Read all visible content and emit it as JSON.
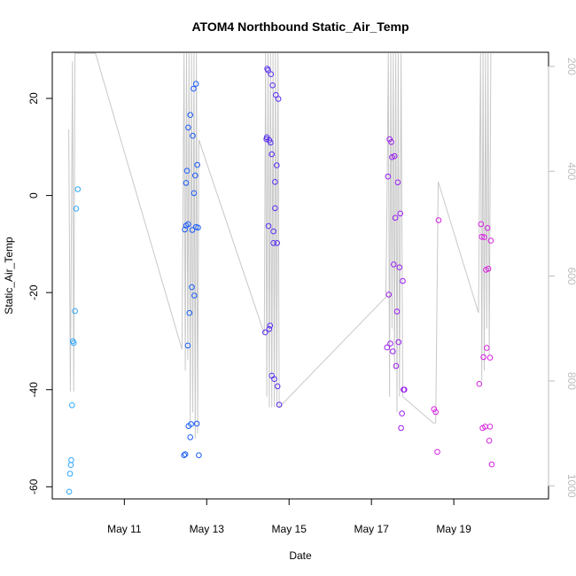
{
  "chart_data": {
    "type": "scatter",
    "title": "ATOM4 Northbound Static_Air_Temp",
    "xlabel": "Date",
    "ylabel": "Static_Air_Temp",
    "x_tick_labels": [
      "May 11",
      "May 13",
      "May 15",
      "May 17",
      "May 19"
    ],
    "x_tick_days": [
      11,
      13,
      15,
      17,
      19
    ],
    "xlim": [
      9.25,
      21.3
    ],
    "ylim": [
      -62.5,
      29.5
    ],
    "y_ticks": [
      -60,
      -40,
      -20,
      0,
      20
    ],
    "y2lim": [
      1025,
      173
    ],
    "y2_ticks": [
      200,
      400,
      600,
      800,
      1000
    ],
    "y2_color": "#bdbdbd",
    "grid": false,
    "point_colors": [
      "#2fa8ff",
      "#1a5cf5",
      "#5a2ef0",
      "#9a1ff0",
      "#d622e0"
    ],
    "pressure_line": {
      "color": "#c8c8c8",
      "x": [
        9.65,
        9.69,
        9.74,
        9.77,
        9.8,
        9.84,
        9.88,
        9.95,
        10.3,
        12.4,
        12.45,
        12.48,
        12.51,
        12.54,
        12.57,
        12.6,
        12.63,
        12.66,
        12.69,
        12.72,
        12.75,
        12.78,
        12.81,
        14.4,
        14.43,
        14.46,
        14.49,
        14.52,
        14.55,
        14.58,
        14.61,
        14.64,
        14.67,
        14.7,
        14.73,
        14.76,
        17.35,
        17.38,
        17.41,
        17.44,
        17.47,
        17.5,
        17.53,
        17.56,
        17.59,
        17.62,
        17.65,
        17.68,
        17.72,
        17.76,
        18.5,
        18.56,
        18.62,
        19.6,
        19.65,
        19.68,
        19.71,
        19.74,
        19.77,
        19.8,
        19.83,
        19.86,
        19.9
      ],
      "y": [
        320,
        820,
        190,
        820,
        175,
        175,
        175,
        175,
        175,
        740,
        175,
        780,
        175,
        760,
        175,
        880,
        175,
        860,
        175,
        910,
        175,
        900,
        340,
        710,
        175,
        830,
        175,
        850,
        175,
        850,
        175,
        850,
        175,
        850,
        175,
        850,
        640,
        450,
        175,
        830,
        175,
        700,
        175,
        780,
        175,
        860,
        175,
        830,
        175,
        830,
        880,
        880,
        420,
        670,
        175,
        800,
        175,
        780,
        175,
        700,
        175,
        750,
        175
      ]
    },
    "series": [
      {
        "x": [
          9.66,
          9.68,
          9.7,
          9.71,
          9.73,
          9.75,
          9.77,
          9.8,
          9.83,
          9.87
        ],
        "y": [
          -61.0,
          -57.3,
          -55.5,
          -54.5,
          -43.2,
          -30.0,
          -30.4,
          -23.8,
          -2.7,
          1.3
        ]
      },
      {
        "x": [
          12.45,
          12.48,
          12.5,
          12.52,
          12.54,
          12.55,
          12.56,
          12.58,
          12.6,
          12.62,
          12.64,
          12.66,
          12.68,
          12.7,
          12.72,
          12.74,
          12.76,
          12.77,
          12.79,
          12.81,
          12.47,
          12.5,
          12.55,
          12.6,
          12.65,
          12.69,
          12.74
        ],
        "y": [
          -53.5,
          -53.3,
          2.6,
          5.1,
          -30.9,
          14.0,
          -47.5,
          -24.2,
          16.6,
          -47.1,
          -18.9,
          12.3,
          22.0,
          -20.6,
          4.1,
          23.0,
          -47.0,
          6.3,
          -6.6,
          -53.5,
          -7.0,
          -6.2,
          -5.9,
          -49.8,
          -7.1,
          0.5,
          -6.5
        ]
      },
      {
        "x": [
          14.42,
          14.45,
          14.47,
          14.49,
          14.5,
          14.52,
          14.54,
          14.56,
          14.58,
          14.6,
          14.62,
          14.64,
          14.66,
          14.68,
          14.7,
          14.72,
          14.74,
          14.76
        ],
        "y": [
          -28.2,
          11.6,
          26.1,
          25.8,
          -6.3,
          -27.5,
          -26.8,
          25.0,
          -37.1,
          22.7,
          -7.4,
          -37.8,
          -2.6,
          20.7,
          6.2,
          -39.3,
          19.9,
          -43.1
        ]
      },
      {
        "x": [
          14.46,
          14.52,
          14.55,
          14.58,
          14.62,
          14.66,
          14.71
        ],
        "y": [
          12.0,
          11.4,
          10.9,
          8.5,
          -9.8,
          2.8,
          -9.8
        ]
      },
      {
        "x": [
          17.38,
          17.4,
          17.42,
          17.44,
          17.46,
          17.48,
          17.5,
          17.52,
          17.54,
          17.56,
          17.58,
          17.6,
          17.62,
          17.64,
          17.66,
          17.68,
          17.7,
          17.72,
          17.74,
          17.76,
          17.78,
          17.8
        ],
        "y": [
          -31.3,
          3.9,
          -20.4,
          11.6,
          -30.5,
          11.0,
          7.9,
          -32.1,
          -14.2,
          8.1,
          -4.6,
          -35.1,
          -23.9,
          2.7,
          -30.2,
          -14.8,
          -3.7,
          -47.9,
          -44.9,
          -17.6,
          -40.0,
          -40.0
        ]
      },
      {
        "x": [
          18.52,
          18.56,
          18.6,
          18.63
        ],
        "y": [
          -44.0,
          -44.6,
          -52.8,
          -5.1
        ]
      },
      {
        "x": [
          19.62,
          19.66,
          19.68,
          19.7,
          19.72,
          19.74,
          19.76,
          19.78,
          19.8,
          19.82,
          19.84,
          19.86,
          19.88
        ],
        "y": [
          -38.8,
          -5.9,
          -8.5,
          -47.9,
          -33.3,
          -8.6,
          -47.6,
          -15.3,
          -31.4,
          -6.7,
          -15.1,
          -50.5,
          -33.4
        ]
      },
      {
        "x": [
          19.9,
          19.92,
          19.88
        ],
        "y": [
          -9.3,
          -55.4,
          -47.6
        ]
      }
    ]
  }
}
